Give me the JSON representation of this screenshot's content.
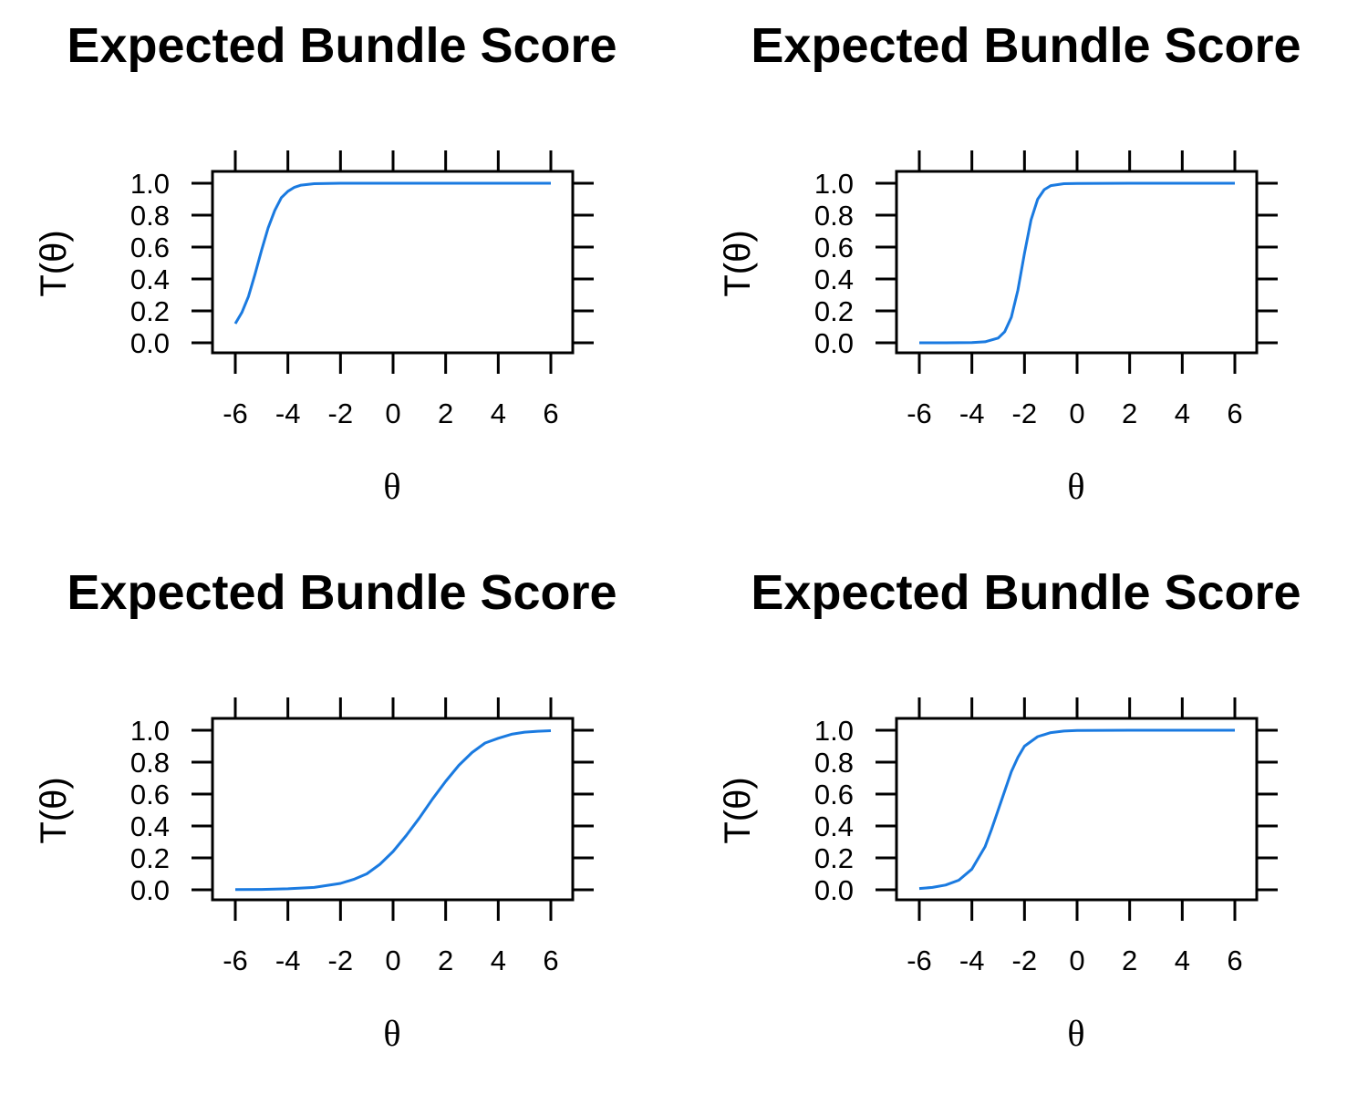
{
  "chart_data": [
    {
      "type": "line",
      "title": "Expected Bundle Score",
      "xlabel": "θ",
      "ylabel": "T(θ)",
      "xlim": [
        -6,
        6
      ],
      "ylim": [
        0,
        1
      ],
      "xticks": [
        "-6",
        "-4",
        "-2",
        "0",
        "2",
        "4",
        "6"
      ],
      "yticks": [
        "0.0",
        "0.2",
        "0.4",
        "0.6",
        "0.8",
        "1.0"
      ],
      "grid": false,
      "line_color": "#1a7ae0",
      "x": [
        -6,
        -5.75,
        -5.5,
        -5.25,
        -5,
        -4.75,
        -4.5,
        -4.25,
        -4,
        -3.75,
        -3.5,
        -3,
        -2.5,
        -2,
        0,
        2,
        4,
        6
      ],
      "y": [
        0.12,
        0.19,
        0.29,
        0.43,
        0.58,
        0.72,
        0.83,
        0.91,
        0.95,
        0.975,
        0.988,
        0.997,
        0.999,
        1.0,
        1.0,
        1.0,
        1.0,
        1.0
      ]
    },
    {
      "type": "line",
      "title": "Expected Bundle Score",
      "xlabel": "θ",
      "ylabel": "T(θ)",
      "xlim": [
        -6,
        6
      ],
      "ylim": [
        0,
        1
      ],
      "xticks": [
        "-6",
        "-4",
        "-2",
        "0",
        "2",
        "4",
        "6"
      ],
      "yticks": [
        "0.0",
        "0.2",
        "0.4",
        "0.6",
        "0.8",
        "1.0"
      ],
      "grid": false,
      "line_color": "#1a7ae0",
      "x": [
        -6,
        -5,
        -4,
        -3.5,
        -3,
        -2.75,
        -2.5,
        -2.25,
        -2,
        -1.75,
        -1.5,
        -1.25,
        -1,
        -0.5,
        0,
        2,
        4,
        6
      ],
      "y": [
        0.0,
        0.0,
        0.001,
        0.006,
        0.03,
        0.07,
        0.16,
        0.33,
        0.56,
        0.77,
        0.9,
        0.96,
        0.985,
        0.997,
        0.999,
        1.0,
        1.0,
        1.0
      ]
    },
    {
      "type": "line",
      "title": "Expected Bundle Score",
      "xlabel": "θ",
      "ylabel": "T(θ)",
      "xlim": [
        -6,
        6
      ],
      "ylim": [
        0,
        1
      ],
      "xticks": [
        "-6",
        "-4",
        "-2",
        "0",
        "2",
        "4",
        "6"
      ],
      "yticks": [
        "0.0",
        "0.2",
        "0.4",
        "0.6",
        "0.8",
        "1.0"
      ],
      "grid": false,
      "line_color": "#1a7ae0",
      "x": [
        -6,
        -5,
        -4,
        -3,
        -2,
        -1.5,
        -1,
        -0.5,
        0,
        0.5,
        1,
        1.5,
        2,
        2.5,
        3,
        3.5,
        4,
        4.5,
        5,
        5.5,
        6
      ],
      "y": [
        0.001,
        0.002,
        0.006,
        0.015,
        0.04,
        0.065,
        0.1,
        0.16,
        0.24,
        0.34,
        0.45,
        0.57,
        0.68,
        0.78,
        0.86,
        0.92,
        0.95,
        0.975,
        0.988,
        0.994,
        0.997
      ]
    },
    {
      "type": "line",
      "title": "Expected Bundle Score",
      "xlabel": "θ",
      "ylabel": "T(θ)",
      "xlim": [
        -6,
        6
      ],
      "ylim": [
        0,
        1
      ],
      "xticks": [
        "-6",
        "-4",
        "-2",
        "0",
        "2",
        "4",
        "6"
      ],
      "yticks": [
        "0.0",
        "0.2",
        "0.4",
        "0.6",
        "0.8",
        "1.0"
      ],
      "grid": false,
      "line_color": "#1a7ae0",
      "x": [
        -6,
        -5.5,
        -5,
        -4.5,
        -4,
        -3.5,
        -3.25,
        -3,
        -2.75,
        -2.5,
        -2.25,
        -2,
        -1.5,
        -1,
        -0.5,
        0,
        2,
        4,
        6
      ],
      "y": [
        0.008,
        0.015,
        0.03,
        0.06,
        0.13,
        0.27,
        0.38,
        0.5,
        0.62,
        0.74,
        0.83,
        0.9,
        0.96,
        0.985,
        0.995,
        0.998,
        1.0,
        1.0,
        1.0
      ]
    }
  ]
}
